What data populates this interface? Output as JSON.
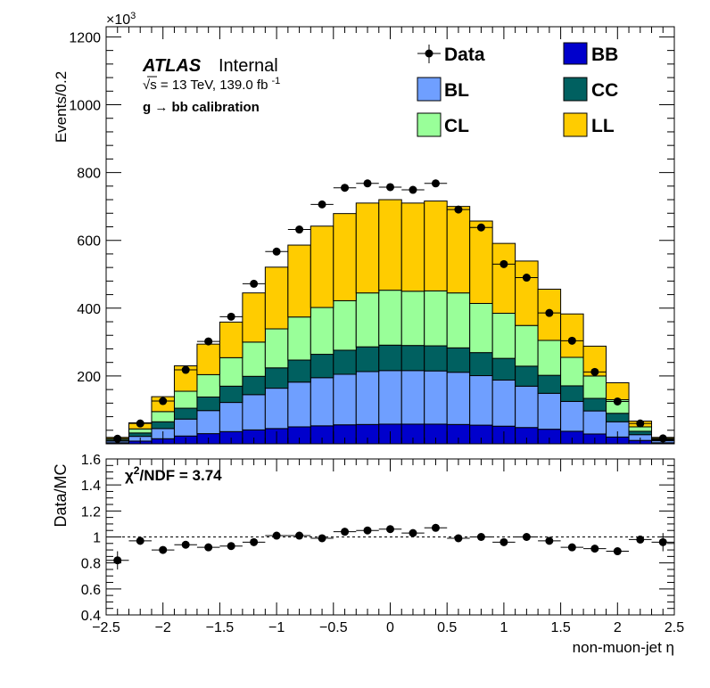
{
  "chart_data": [
    {
      "type": "stacked-histogram",
      "x_edges": [
        -2.5,
        -2.3,
        -2.1,
        -1.9,
        -1.7,
        -1.5,
        -1.3,
        -1.1,
        -0.9,
        -0.7,
        -0.5,
        -0.3,
        -0.1,
        0.1,
        0.3,
        0.5,
        0.7,
        0.9,
        1.1,
        1.3,
        1.5,
        1.7,
        1.9,
        2.1,
        2.3,
        2.5
      ],
      "series": [
        {
          "name": "BB",
          "color": "#0000cc",
          "values": [
            3,
            8,
            15,
            23,
            30,
            36,
            41,
            45,
            50,
            53,
            56,
            57,
            58,
            58,
            58,
            57,
            55,
            52,
            48,
            43,
            37,
            29,
            20,
            10,
            3
          ]
        },
        {
          "name": "BL",
          "color": "#6f9fff",
          "values": [
            5,
            14,
            30,
            50,
            68,
            86,
            104,
            119,
            132,
            142,
            149,
            156,
            158,
            158,
            157,
            154,
            146,
            136,
            122,
            106,
            88,
            68,
            45,
            17,
            6
          ]
        },
        {
          "name": "CC",
          "color": "#006060",
          "values": [
            3,
            10,
            20,
            32,
            40,
            48,
            54,
            60,
            65,
            69,
            71,
            73,
            75,
            74,
            74,
            72,
            68,
            64,
            59,
            53,
            46,
            37,
            25,
            10,
            3
          ]
        },
        {
          "name": "CL",
          "color": "#99ff99",
          "values": [
            4,
            12,
            30,
            50,
            66,
            84,
            101,
            115,
            127,
            138,
            146,
            159,
            162,
            160,
            162,
            162,
            145,
            133,
            120,
            103,
            84,
            66,
            40,
            13,
            3
          ]
        },
        {
          "name": "LL",
          "color": "#ffcc00",
          "values": [
            4,
            18,
            44,
            75,
            90,
            105,
            145,
            182,
            212,
            240,
            257,
            265,
            267,
            260,
            265,
            255,
            243,
            206,
            190,
            151,
            128,
            88,
            50,
            17,
            4
          ]
        }
      ],
      "data": {
        "name": "Data",
        "x": [
          -2.4,
          -2.2,
          -2.0,
          -1.8,
          -1.6,
          -1.4,
          -1.2,
          -1.0,
          -0.8,
          -0.6,
          -0.4,
          -0.2,
          0.0,
          0.2,
          0.4,
          0.6,
          0.8,
          1.0,
          1.2,
          1.4,
          1.6,
          1.8,
          2.0,
          2.2,
          2.4
        ],
        "y": [
          15,
          60,
          126,
          218,
          302,
          375,
          472,
          567,
          632,
          706,
          755,
          768,
          757,
          749,
          768,
          691,
          638,
          530,
          490,
          386,
          304,
          212,
          125,
          60,
          16
        ]
      },
      "ylabel": "Events/0.2",
      "y_multiplier": "×10",
      "y_multiplier_exp": "3",
      "ylim": [
        0,
        1230
      ],
      "yticks": [
        200,
        400,
        600,
        800,
        1000,
        1200
      ],
      "yticks_minor_step": 40,
      "xlim": [
        -2.5,
        2.5
      ],
      "legend": [
        "Data",
        "BB",
        "BL",
        "CC",
        "CL",
        "LL"
      ]
    },
    {
      "type": "scatter",
      "x": [
        -2.4,
        -2.2,
        -2.0,
        -1.8,
        -1.6,
        -1.4,
        -1.2,
        -1.0,
        -0.8,
        -0.6,
        -0.4,
        -0.2,
        0.0,
        0.2,
        0.4,
        0.6,
        0.8,
        1.0,
        1.2,
        1.4,
        1.6,
        1.8,
        2.0,
        2.2,
        2.4
      ],
      "y": [
        0.82,
        0.97,
        0.9,
        0.94,
        0.92,
        0.93,
        0.96,
        1.01,
        1.01,
        0.99,
        1.04,
        1.05,
        1.06,
        1.03,
        1.07,
        0.99,
        1.0,
        0.96,
        1.0,
        0.97,
        0.92,
        0.91,
        0.89,
        0.98,
        0.96
      ],
      "yerr": [
        0.07,
        0.03,
        0.02,
        0.01,
        0.01,
        0.01,
        0.01,
        0.01,
        0.01,
        0.01,
        0.01,
        0.01,
        0.01,
        0.01,
        0.01,
        0.01,
        0.01,
        0.01,
        0.01,
        0.01,
        0.01,
        0.01,
        0.02,
        0.03,
        0.07
      ],
      "reference_line": 1,
      "ylabel": "Data/MC",
      "xlabel": "non-muon-jet η",
      "ylim": [
        0.4,
        1.6
      ],
      "yticks": [
        "0.4",
        "0.6",
        "0.8",
        "1",
        "1.2",
        "1.4",
        "1.6"
      ],
      "xlim": [
        -2.5,
        2.5
      ],
      "xticks": [
        "−2.5",
        "−2",
        "−1.5",
        "−1",
        "−0.5",
        "0",
        "0.5",
        "1",
        "1.5",
        "2",
        "2.5"
      ],
      "chi2_label": "χ",
      "chi2_sup": "2",
      "chi2_text": "/NDF = 3.74"
    }
  ],
  "labels": {
    "atlas": "ATLAS",
    "internal": "Internal",
    "sqrt": "√s = 13 TeV, 139.0 fb",
    "lumi_sup": "-1",
    "calibration": "g  → bb calibration"
  }
}
